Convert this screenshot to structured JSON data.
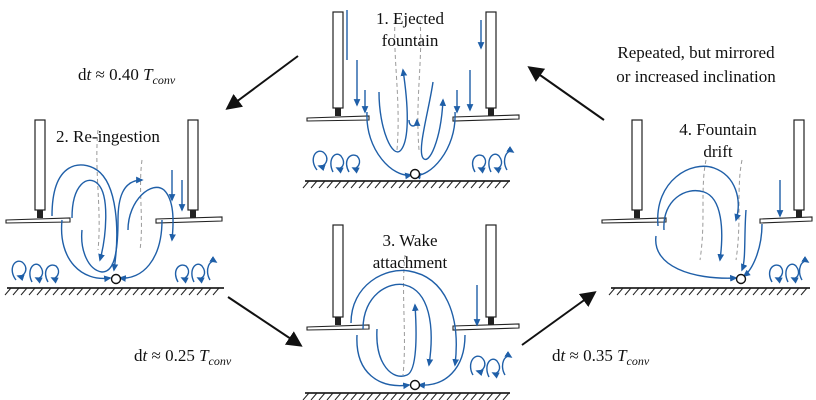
{
  "colors": {
    "flow": "#1f5fa8",
    "ink": "#111111",
    "ground": "#222222",
    "dashed": "#9a9a9a"
  },
  "panels": [
    {
      "id": "ejected-fountain",
      "label_lines": [
        "1. Ejected",
        "fountain"
      ]
    },
    {
      "id": "re-ingestion",
      "label_lines": [
        "2. Re-ingestion"
      ]
    },
    {
      "id": "wake-attachment",
      "label_lines": [
        "3. Wake",
        "attachment"
      ]
    },
    {
      "id": "fountain-drift",
      "label_lines": [
        "4. Fountain",
        "drift"
      ]
    }
  ],
  "transitions": [
    {
      "id": "t12",
      "prefix": "d",
      "var": "t",
      "approx": " ≈ 0.40 ",
      "symbol": "T",
      "subscript": "conv"
    },
    {
      "id": "t23",
      "prefix": "d",
      "var": "t",
      "approx": " ≈ 0.25 ",
      "symbol": "T",
      "subscript": "conv"
    },
    {
      "id": "t34",
      "prefix": "d",
      "var": "t",
      "approx": " ≈ 0.35 ",
      "symbol": "T",
      "subscript": "conv"
    }
  ],
  "note": {
    "lines": [
      "Repeated, but mirrored",
      "or increased inclination"
    ]
  }
}
